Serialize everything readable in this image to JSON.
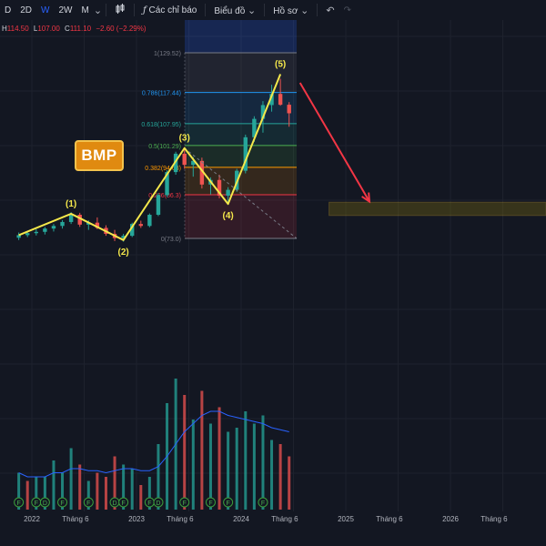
{
  "toolbar": {
    "interval_1": "D",
    "interval_2": "2D",
    "interval_3": "W",
    "interval_4": "2W",
    "interval_5": "M",
    "indicators": "Các chỉ báo",
    "chart_type": "Biểu đồ",
    "profile": "Hồ sơ"
  },
  "ohlc": {
    "h_label": "H",
    "h": "114.50",
    "l_label": "L",
    "l": "107.00",
    "c_label": "C",
    "c": "111.10",
    "change": "−2.60 (−2.29%)"
  },
  "logo_text": "BMP",
  "colors": {
    "up": "#26a69a",
    "down": "#ef5350",
    "wave": "#f5e84b",
    "arrow": "#f23645",
    "background": "#131722"
  },
  "chart_data": {
    "type": "candlestick",
    "price_ylim": [
      60,
      132
    ],
    "x_ticks": [
      "2022",
      "Tháng 6",
      "2023",
      "Tháng 6",
      "2024",
      "Tháng 6",
      "2025",
      "Tháng 6",
      "2026",
      "Tháng 6"
    ],
    "fib_levels": [
      {
        "ratio": "1",
        "price": "129.52",
        "label": "1(129.52)",
        "color": "#787b86"
      },
      {
        "ratio": "0.786",
        "price": "117.44",
        "label": "0.786(117.44)",
        "color": "#2196f3"
      },
      {
        "ratio": "0.618",
        "price": "107.95",
        "label": "0.618(107.95)",
        "color": "#26a69a"
      },
      {
        "ratio": "0.5",
        "price": "101.29",
        "label": "0.5(101.29)",
        "color": "#4caf50"
      },
      {
        "ratio": "0.382",
        "price": "94.63",
        "label": "0.382(94.63)",
        "color": "#ff9800"
      },
      {
        "ratio": "0.236",
        "price": "86.3",
        "label": "0.236(86.3)",
        "color": "#f23645"
      },
      {
        "ratio": "0",
        "price": "73.0",
        "label": "0(73.0)",
        "color": "#787b86"
      }
    ],
    "waves": [
      {
        "label": "(1)",
        "date": "2022-05",
        "price": 80.5
      },
      {
        "label": "(2)",
        "date": "2022-11",
        "price": 72.5
      },
      {
        "label": "(3)",
        "date": "2023-06",
        "price": 100.5
      },
      {
        "label": "(4)",
        "date": "2023-11",
        "price": 83.5
      },
      {
        "label": "(5)",
        "date": "2024-05",
        "price": 123.0
      }
    ],
    "wave_start": {
      "date": "2021-11",
      "price": 74.0
    },
    "target_zone": {
      "from": "2024-11",
      "to": "2026-12",
      "price_low": 80,
      "price_high": 84
    },
    "arrow": {
      "from_date": "2024-06",
      "from_price": 121.5,
      "to_date": "2025-03",
      "to_price": 84.5
    },
    "candles": [
      [
        "2021-11",
        73.2,
        74.8,
        72.5,
        74.0
      ],
      [
        "2021-12",
        74.0,
        75.2,
        73.4,
        74.6
      ],
      [
        "2022-01",
        74.6,
        75.8,
        73.9,
        75.0
      ],
      [
        "2022-02",
        75.0,
        76.5,
        74.2,
        76.0
      ],
      [
        "2022-03",
        76.0,
        77.4,
        75.1,
        76.8
      ],
      [
        "2022-04",
        76.8,
        78.6,
        76.0,
        78.0
      ],
      [
        "2022-05",
        78.0,
        81.0,
        77.4,
        80.2
      ],
      [
        "2022-06",
        80.2,
        80.8,
        76.5,
        77.2
      ],
      [
        "2022-07",
        77.2,
        78.5,
        75.6,
        77.8
      ],
      [
        "2022-08",
        77.8,
        79.4,
        75.8,
        76.2
      ],
      [
        "2022-09",
        76.2,
        77.0,
        73.8,
        74.4
      ],
      [
        "2022-10",
        74.4,
        75.6,
        72.2,
        73.1
      ],
      [
        "2022-11",
        73.1,
        74.4,
        72.0,
        73.8
      ],
      [
        "2022-12",
        73.8,
        77.8,
        73.4,
        77.4
      ],
      [
        "2023-01",
        77.4,
        78.4,
        76.2,
        76.8
      ],
      [
        "2023-02",
        76.8,
        80.6,
        76.4,
        80.2
      ],
      [
        "2023-03",
        80.2,
        86.8,
        79.8,
        86.2
      ],
      [
        "2023-04",
        86.2,
        93.8,
        85.6,
        93.2
      ],
      [
        "2023-05",
        93.2,
        99.4,
        92.4,
        98.8
      ],
      [
        "2023-06",
        98.8,
        100.8,
        94.2,
        95.4
      ],
      [
        "2023-07",
        95.4,
        97.8,
        91.8,
        96.6
      ],
      [
        "2023-08",
        96.6,
        97.6,
        88.2,
        89.4
      ],
      [
        "2023-09",
        89.4,
        91.6,
        86.4,
        90.8
      ],
      [
        "2023-10",
        90.8,
        92.4,
        85.2,
        86.0
      ],
      [
        "2023-11",
        86.0,
        88.6,
        83.2,
        87.8
      ],
      [
        "2023-12",
        87.8,
        94.2,
        87.2,
        93.6
      ],
      [
        "2024-01",
        93.6,
        104.6,
        92.8,
        103.8
      ],
      [
        "2024-02",
        103.8,
        110.2,
        102.4,
        109.4
      ],
      [
        "2024-03",
        109.4,
        114.8,
        105.2,
        113.6
      ],
      [
        "2024-04",
        113.6,
        119.8,
        111.6,
        117.0
      ],
      [
        "2024-05",
        117.0,
        121.6,
        113.4,
        113.7
      ],
      [
        "2024-06",
        113.7,
        114.5,
        107.0,
        111.1
      ]
    ],
    "volume": [
      [
        "2021-11",
        0.9,
        1
      ],
      [
        "2021-12",
        0.7,
        0
      ],
      [
        "2022-01",
        0.8,
        1
      ],
      [
        "2022-02",
        0.8,
        1
      ],
      [
        "2022-03",
        1.2,
        1
      ],
      [
        "2022-04",
        0.9,
        1
      ],
      [
        "2022-05",
        1.5,
        1
      ],
      [
        "2022-06",
        1.1,
        0
      ],
      [
        "2022-07",
        0.7,
        1
      ],
      [
        "2022-08",
        0.9,
        0
      ],
      [
        "2022-09",
        0.8,
        0
      ],
      [
        "2022-10",
        1.3,
        0
      ],
      [
        "2022-11",
        1.1,
        1
      ],
      [
        "2022-12",
        1.0,
        1
      ],
      [
        "2023-01",
        0.6,
        0
      ],
      [
        "2023-02",
        0.8,
        1
      ],
      [
        "2023-03",
        1.6,
        1
      ],
      [
        "2023-04",
        2.6,
        1
      ],
      [
        "2023-05",
        3.2,
        1
      ],
      [
        "2023-06",
        2.8,
        0
      ],
      [
        "2023-07",
        2.2,
        1
      ],
      [
        "2023-08",
        2.9,
        0
      ],
      [
        "2023-09",
        2.1,
        1
      ],
      [
        "2023-10",
        2.5,
        0
      ],
      [
        "2023-11",
        1.9,
        1
      ],
      [
        "2023-12",
        2.0,
        1
      ],
      [
        "2024-01",
        2.4,
        1
      ],
      [
        "2024-02",
        2.1,
        1
      ],
      [
        "2024-03",
        2.3,
        1
      ],
      [
        "2024-04",
        1.7,
        1
      ],
      [
        "2024-05",
        1.6,
        0
      ],
      [
        "2024-06",
        1.3,
        0
      ]
    ],
    "volume_ma": [
      0.9,
      0.8,
      0.8,
      0.8,
      0.9,
      0.9,
      1.0,
      1.0,
      0.95,
      0.95,
      0.9,
      0.95,
      1.0,
      1.0,
      0.95,
      0.95,
      1.05,
      1.3,
      1.6,
      1.9,
      2.1,
      2.3,
      2.4,
      2.4,
      2.3,
      2.25,
      2.2,
      2.15,
      2.1,
      2.0,
      1.95,
      1.9
    ],
    "events": [
      {
        "date": "2021-11",
        "mark": "F"
      },
      {
        "date": "2022-01",
        "mark": "F"
      },
      {
        "date": "2022-02",
        "mark": "D"
      },
      {
        "date": "2022-04",
        "mark": "F"
      },
      {
        "date": "2022-07",
        "mark": "F"
      },
      {
        "date": "2022-10",
        "mark": "D"
      },
      {
        "date": "2022-11",
        "mark": "F"
      },
      {
        "date": "2023-02",
        "mark": "F"
      },
      {
        "date": "2023-03",
        "mark": "D"
      },
      {
        "date": "2023-06",
        "mark": "F"
      },
      {
        "date": "2023-09",
        "mark": "F"
      },
      {
        "date": "2023-11",
        "mark": "F"
      },
      {
        "date": "2024-03",
        "mark": "F"
      }
    ]
  }
}
